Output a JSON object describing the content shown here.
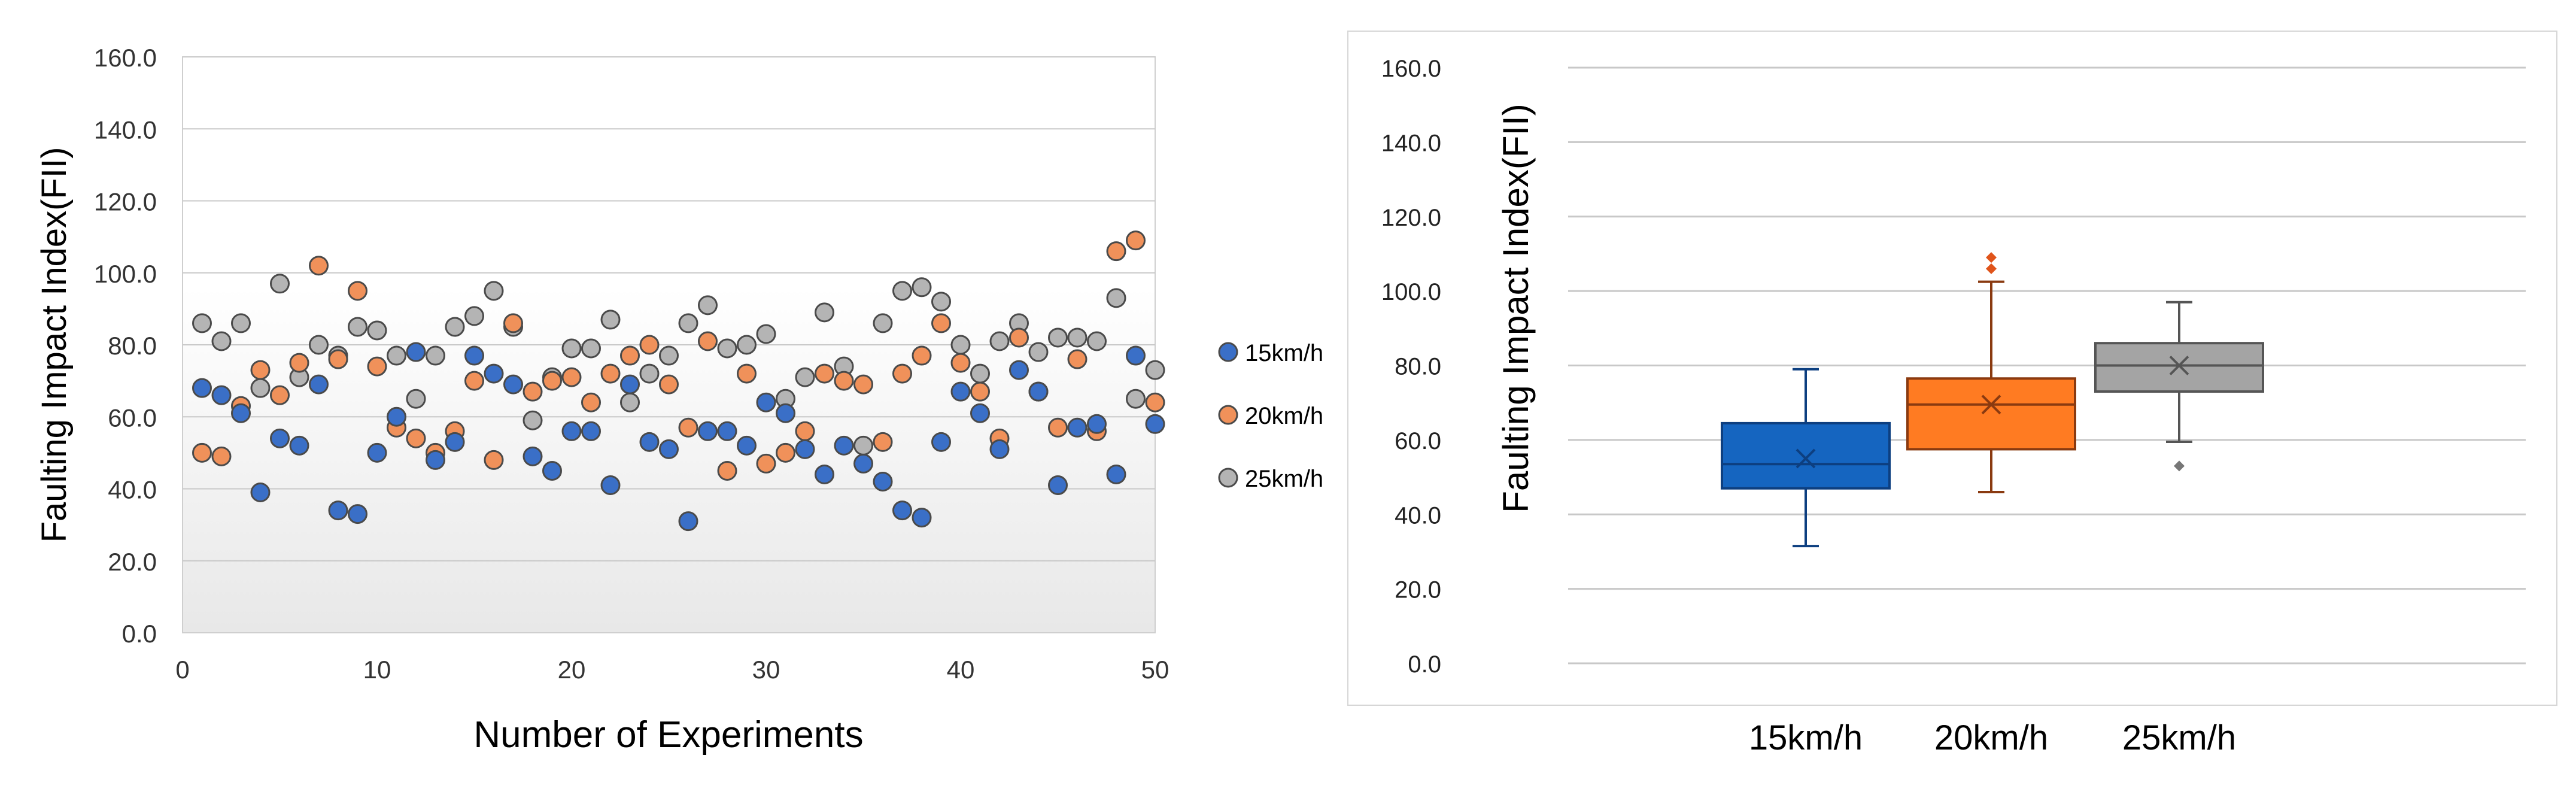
{
  "chart_data": [
    {
      "type": "scatter",
      "xlabel": "Number of Experiments",
      "ylabel": "Faulting Impact Index(FII)",
      "xlim": [
        0,
        50
      ],
      "ylim": [
        0,
        160
      ],
      "x_ticks": [
        "0",
        "10",
        "20",
        "30",
        "40",
        "50"
      ],
      "y_ticks": [
        "0.0",
        "20.0",
        "40.0",
        "60.0",
        "80.0",
        "100.0",
        "120.0",
        "140.0",
        "160.0"
      ],
      "legend_position": "right",
      "series": [
        {
          "name": "15km/h",
          "color": "#3a6fc7",
          "x": [
            1,
            2,
            3,
            4,
            5,
            6,
            7,
            8,
            9,
            10,
            11,
            12,
            13,
            14,
            15,
            16,
            17,
            18,
            19,
            20,
            21,
            22,
            23,
            24,
            25,
            26,
            27,
            28,
            29,
            30,
            31,
            32,
            33,
            34,
            35,
            36,
            37,
            38,
            39,
            40,
            41,
            42,
            43,
            44,
            45,
            46,
            47,
            48,
            49,
            50
          ],
          "y": [
            68,
            66,
            61,
            39,
            54,
            52,
            69,
            34,
            33,
            50,
            60,
            78,
            48,
            53,
            77,
            72,
            69,
            49,
            45,
            56,
            56,
            41,
            69,
            53,
            51,
            31,
            56,
            56,
            52,
            64,
            61,
            51,
            44,
            52,
            47,
            42,
            34,
            32,
            53,
            67,
            61,
            51,
            73,
            67,
            41,
            57,
            58,
            44,
            77,
            58
          ]
        },
        {
          "name": "20km/h",
          "color": "#f0915a",
          "x": [
            1,
            2,
            3,
            4,
            5,
            6,
            7,
            8,
            9,
            10,
            11,
            12,
            13,
            14,
            15,
            16,
            17,
            18,
            19,
            20,
            21,
            22,
            23,
            24,
            25,
            26,
            27,
            28,
            29,
            30,
            31,
            32,
            33,
            34,
            35,
            36,
            37,
            38,
            39,
            40,
            41,
            42,
            43,
            44,
            45,
            46,
            47,
            48,
            49,
            50
          ],
          "y": [
            50,
            49,
            63,
            73,
            66,
            75,
            102,
            76,
            95,
            74,
            57,
            54,
            50,
            56,
            70,
            48,
            86,
            67,
            70,
            71,
            64,
            72,
            77,
            80,
            69,
            57,
            81,
            45,
            72,
            47,
            50,
            56,
            72,
            70,
            69,
            53,
            72,
            77,
            86,
            75,
            67,
            54,
            82,
            67,
            57,
            76,
            56,
            106,
            109,
            64
          ]
        },
        {
          "name": "25km/h",
          "color": "#b4b4b4",
          "x": [
            1,
            2,
            3,
            4,
            5,
            6,
            7,
            8,
            9,
            10,
            11,
            12,
            13,
            14,
            15,
            16,
            17,
            18,
            19,
            20,
            21,
            22,
            23,
            24,
            25,
            26,
            27,
            28,
            29,
            30,
            31,
            32,
            33,
            34,
            35,
            36,
            37,
            38,
            39,
            40,
            41,
            42,
            43,
            44,
            45,
            46,
            47,
            48,
            49,
            50
          ],
          "y": [
            86,
            81,
            86,
            68,
            97,
            71,
            80,
            77,
            85,
            84,
            77,
            65,
            77,
            85,
            88,
            95,
            85,
            59,
            71,
            79,
            79,
            87,
            64,
            72,
            77,
            86,
            91,
            79,
            80,
            83,
            65,
            71,
            89,
            74,
            52,
            86,
            95,
            96,
            92,
            80,
            72,
            81,
            86,
            78,
            82,
            82,
            81,
            93,
            65,
            73
          ]
        }
      ]
    },
    {
      "type": "box",
      "xlabel": "",
      "ylabel": "Faulting Impact Index(FII)",
      "ylim": [
        0,
        160
      ],
      "y_ticks": [
        "0.0",
        "20.0",
        "40.0",
        "60.0",
        "80.0",
        "100.0",
        "120.0",
        "140.0",
        "160.0"
      ],
      "categories": [
        "15km/h",
        "20km/h",
        "25km/h"
      ],
      "boxes": [
        {
          "name": "15km/h",
          "fill": "#1565c0",
          "stroke": "#0d3f80",
          "min": 31.5,
          "q1": 47,
          "median": 53.5,
          "q3": 64.5,
          "max": 79,
          "mean": 55,
          "outliers": []
        },
        {
          "name": "20km/h",
          "fill": "#ff7b22",
          "stroke": "#8a3a10",
          "min": 46,
          "q1": 57.5,
          "median": 69.5,
          "q3": 76.5,
          "max": 102.5,
          "mean": 69.5,
          "outliers": [
            106,
            109
          ]
        },
        {
          "name": "25km/h",
          "fill": "#a4a4a4",
          "stroke": "#555555",
          "min": 59.5,
          "q1": 73,
          "median": 80,
          "q3": 86,
          "max": 97,
          "mean": 80,
          "outliers": [
            53
          ]
        }
      ]
    }
  ]
}
